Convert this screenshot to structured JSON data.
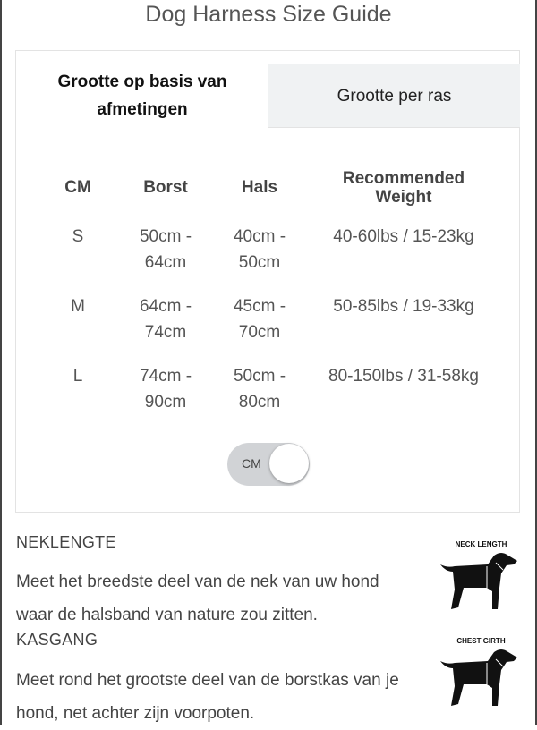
{
  "title": "Dog Harness Size Guide",
  "tabs": [
    {
      "label": "Grootte op basis van afmetingen",
      "active": true
    },
    {
      "label": "Grootte per ras",
      "active": false
    }
  ],
  "table": {
    "headers": [
      "CM",
      "Borst",
      "Hals",
      "Recommended Weight"
    ],
    "rows": [
      {
        "size": "S",
        "borst": "50cm - 64cm",
        "hals": "40cm - 50cm",
        "weight": "40-60lbs / 15-23kg"
      },
      {
        "size": "M",
        "borst": "64cm - 74cm",
        "hals": "45cm - 70cm",
        "weight": "50-85lbs / 19-33kg"
      },
      {
        "size": "L",
        "borst": "74cm - 90cm",
        "hals": "50cm - 80cm",
        "weight": "80-150lbs / 31-58kg"
      }
    ]
  },
  "unit_toggle": {
    "label": "CM",
    "on": true
  },
  "sections": [
    {
      "title": "NEKLENGTE",
      "text": "Meet het breedste deel van de nek van uw hond waar de halsband van nature zou zitten.",
      "image_label": "NECK LENGTH"
    },
    {
      "title": "KASGANG",
      "text": "Meet rond het grootste deel van de borstkas van je hond, net achter zijn voorpoten.",
      "image_label": "CHEST GIRTH"
    }
  ]
}
